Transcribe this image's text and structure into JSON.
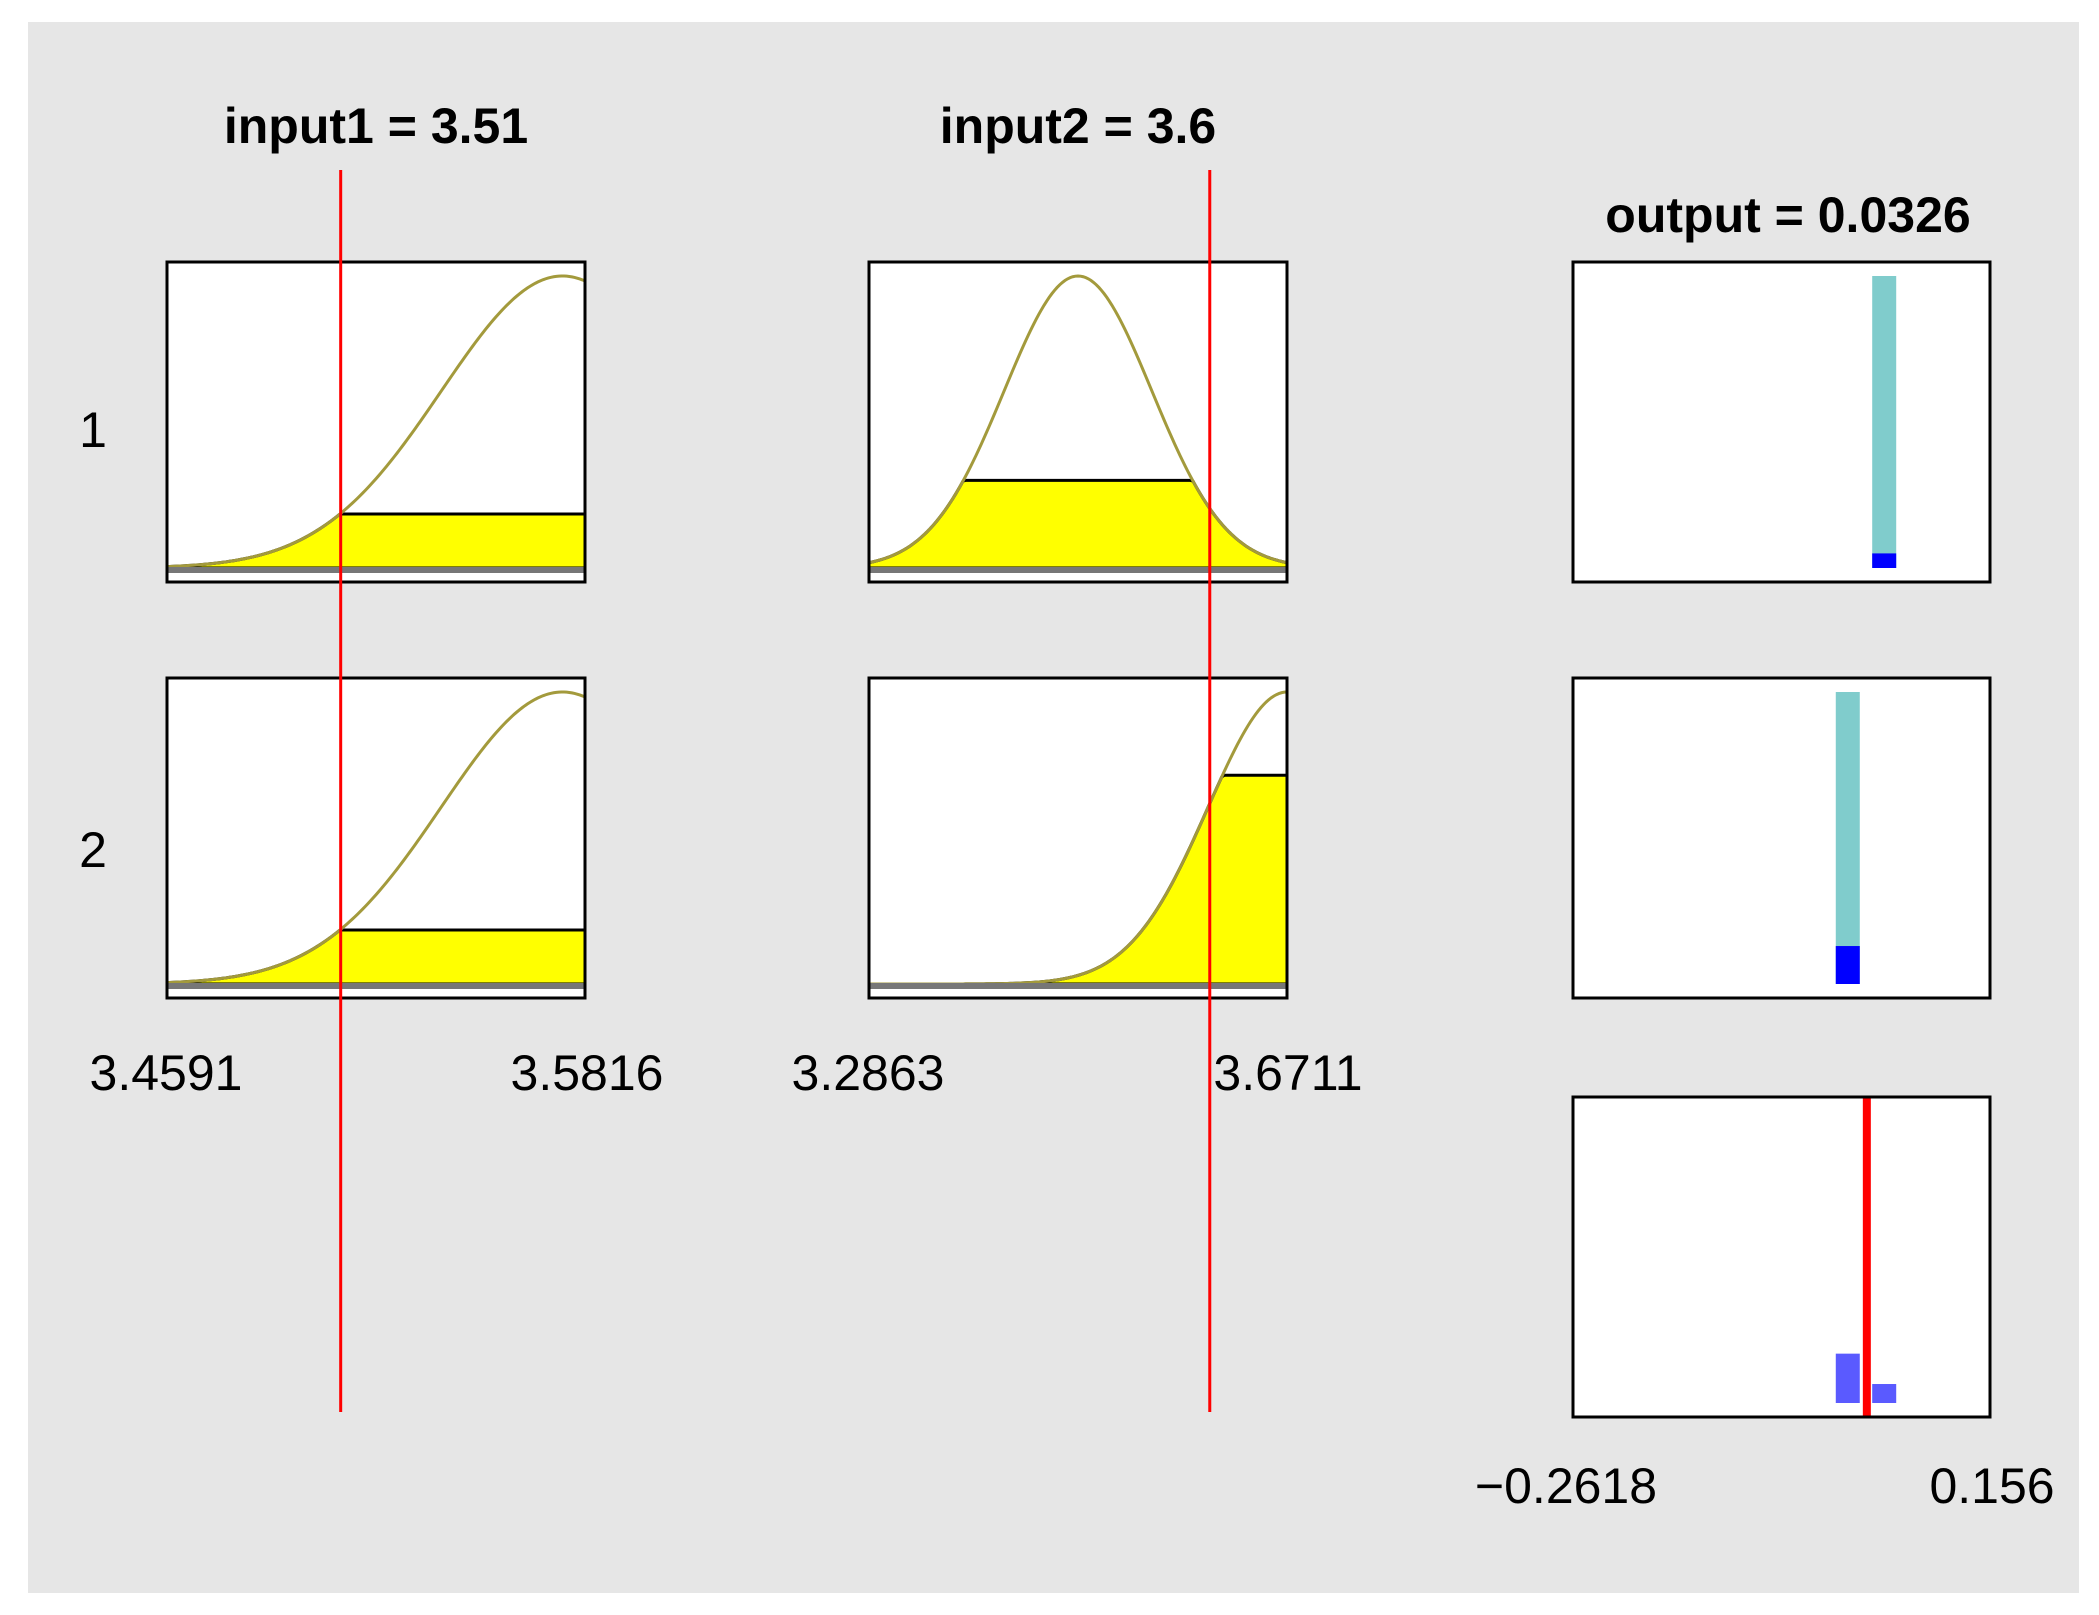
{
  "chart_data": {
    "type": "fuzzy-rule-viewer",
    "colors": {
      "background": "#e6e6e6",
      "panel": "#ffffff",
      "mf_curve": "#a39a3c",
      "fill": "#ffff00",
      "index_line": "#ff0000",
      "output_mf": "#80cccc",
      "output_fill": "#0000ff",
      "aggregate": "#5a5aff",
      "result_line": "#ff0000"
    },
    "rule_labels": [
      "1",
      "2"
    ],
    "inputs": [
      {
        "title": "input1 = 3.51",
        "value": 3.51,
        "range": [
          3.4591,
          3.5816
        ],
        "range_labels": [
          "3.4591",
          "3.5816"
        ],
        "rules": [
          {
            "mf": {
              "type": "gauss",
              "center": 3.575,
              "sigma": 0.0355
            },
            "degree": 0.185
          },
          {
            "mf": {
              "type": "gauss",
              "center": 3.575,
              "sigma": 0.0355
            },
            "degree": 0.185
          }
        ]
      },
      {
        "title": "input2 = 3.6",
        "value": 3.6,
        "range": [
          3.2863,
          3.6711
        ],
        "range_labels": [
          "3.2863",
          "3.6711"
        ],
        "rules": [
          {
            "mf": {
              "type": "gauss",
              "center": 3.4787,
              "sigma": 0.068
            },
            "degree": 0.3
          },
          {
            "mf": {
              "type": "gauss",
              "center": 3.6711,
              "sigma": 0.0725
            },
            "degree": 0.715
          }
        ]
      }
    ],
    "output": {
      "title": "output = 0.0326",
      "value": 0.0326,
      "range": [
        -0.2618,
        0.156
      ],
      "range_labels": [
        "−0.2618",
        "0.156"
      ],
      "rules": [
        {
          "position": 0.05,
          "degree": 0.05
        },
        {
          "position": 0.0135,
          "degree": 0.13
        }
      ]
    }
  }
}
